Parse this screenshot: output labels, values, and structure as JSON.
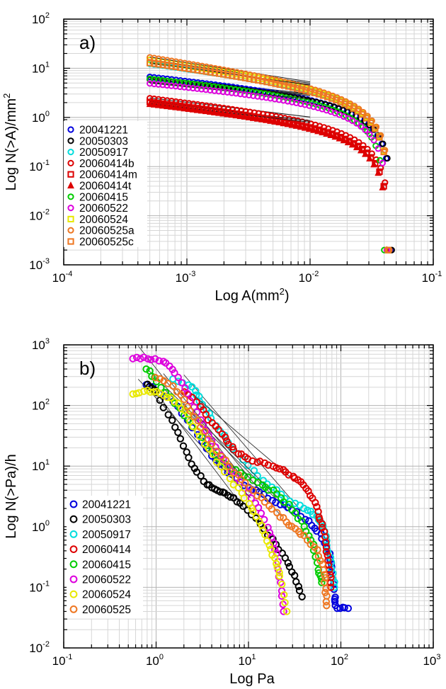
{
  "chart_data": [
    {
      "type": "scatter",
      "panel_label": "a)",
      "xlabel": "Log A(mm",
      "xlabel_sup": "2",
      "xlabel_end": ")",
      "ylabel": "Log N(>A)/mm",
      "ylabel_sup": "2",
      "x_scale": "log",
      "y_scale": "log",
      "xlim": [
        0.0001,
        0.1
      ],
      "ylim": [
        0.001,
        100
      ],
      "x_ticks": [
        {
          "base": "10",
          "exp": "-4"
        },
        {
          "base": "10",
          "exp": "-3"
        },
        {
          "base": "10",
          "exp": "-2"
        },
        {
          "base": "10",
          "exp": "-1"
        }
      ],
      "y_ticks": [
        {
          "base": "10",
          "exp": "-3"
        },
        {
          "base": "10",
          "exp": "-2"
        },
        {
          "base": "10",
          "exp": "-1"
        },
        {
          "base": "10",
          "exp": "0"
        },
        {
          "base": "10",
          "exp": "1"
        },
        {
          "base": "10",
          "exp": "2"
        }
      ],
      "grid": true,
      "legend_position": "left",
      "series": [
        {
          "name": "20041221",
          "color": "#0000dd",
          "marker": "circle",
          "n0": 6.8,
          "slope": -0.27,
          "xmax": 0.045
        },
        {
          "name": "20050303",
          "color": "#000000",
          "marker": "circle",
          "n0": 6.0,
          "slope": -0.24,
          "xmax": 0.046
        },
        {
          "name": "20050917",
          "color": "#00dddd",
          "marker": "circle",
          "n0": 12.5,
          "slope": -0.33,
          "xmax": 0.043
        },
        {
          "name": "20060414b",
          "color": "#dd0000",
          "marker": "circle",
          "n0": 2.5,
          "slope": -0.3,
          "xmax": 0.044
        },
        {
          "name": "20060414m",
          "color": "#dd0000",
          "marker": "square",
          "n0": 2.1,
          "slope": -0.3,
          "xmax": 0.043
        },
        {
          "name": "20060414t",
          "color": "#dd0000",
          "marker": "triangle",
          "n0": 1.9,
          "slope": -0.29,
          "xmax": 0.042
        },
        {
          "name": "20060415",
          "color": "#00cc00",
          "marker": "circle",
          "n0": 6.2,
          "slope": -0.27,
          "xmax": 0.04
        },
        {
          "name": "20060522",
          "color": "#dd00dd",
          "marker": "circle",
          "n0": 5.0,
          "slope": -0.25,
          "xmax": 0.042
        },
        {
          "name": "20060524",
          "color": "#e8e800",
          "marker": "square",
          "n0": 15.0,
          "slope": -0.37,
          "xmax": 0.043
        },
        {
          "name": "20060525a",
          "color": "#ee7722",
          "marker": "circle",
          "n0": 17.0,
          "slope": -0.39,
          "xmax": 0.044
        },
        {
          "name": "20060525c",
          "color": "#ee7722",
          "marker": "square",
          "n0": 13.0,
          "slope": -0.35,
          "xmax": 0.043
        }
      ]
    },
    {
      "type": "scatter",
      "panel_label": "b)",
      "xlabel": "Log Pa",
      "ylabel": "Log N(>Pa)/h",
      "x_scale": "log",
      "y_scale": "log",
      "xlim": [
        0.1,
        1000
      ],
      "ylim": [
        0.01,
        1000
      ],
      "x_ticks": [
        {
          "base": "10",
          "exp": "-1"
        },
        {
          "base": "10",
          "exp": "0"
        },
        {
          "base": "10",
          "exp": "1"
        },
        {
          "base": "10",
          "exp": "2"
        },
        {
          "base": "10",
          "exp": "3"
        }
      ],
      "y_ticks": [
        {
          "base": "10",
          "exp": "-2"
        },
        {
          "base": "10",
          "exp": "-1"
        },
        {
          "base": "10",
          "exp": "0"
        },
        {
          "base": "10",
          "exp": "1"
        },
        {
          "base": "10",
          "exp": "2"
        },
        {
          "base": "10",
          "exp": "3"
        }
      ],
      "grid": true,
      "legend_position": "bottom-left",
      "series": [
        {
          "name": "20041221",
          "color": "#0000dd",
          "points": [
            [
              0.8,
              230
            ],
            [
              1.5,
              120
            ],
            [
              2.5,
              45
            ],
            [
              4,
              15
            ],
            [
              6,
              8
            ],
            [
              9,
              5
            ],
            [
              13,
              3.6
            ],
            [
              20,
              2.6
            ],
            [
              30,
              1.9
            ],
            [
              45,
              1.2
            ],
            [
              60,
              0.75
            ],
            [
              75,
              0.35
            ],
            [
              80,
              0.18
            ],
            [
              85,
              0.07
            ],
            [
              90,
              0.045
            ],
            [
              120,
              0.045
            ]
          ]
        },
        {
          "name": "20050303",
          "color": "#000000",
          "points": [
            [
              0.8,
              220
            ],
            [
              1,
              160
            ],
            [
              1.5,
              55
            ],
            [
              2,
              22
            ],
            [
              2.6,
              9
            ],
            [
              3.5,
              5
            ],
            [
              4.5,
              4
            ],
            [
              6,
              3.3
            ],
            [
              8,
              2.5
            ],
            [
              12,
              1.4
            ],
            [
              18,
              0.6
            ],
            [
              25,
              0.3
            ],
            [
              32,
              0.15
            ],
            [
              38,
              0.07
            ]
          ]
        },
        {
          "name": "20050917",
          "color": "#00dddd",
          "points": [
            [
              1.5,
              270
            ],
            [
              2.5,
              200
            ],
            [
              3,
              120
            ],
            [
              4,
              60
            ],
            [
              6,
              25
            ],
            [
              10,
              10
            ],
            [
              16,
              5
            ],
            [
              25,
              3
            ],
            [
              40,
              2
            ],
            [
              55,
              1.5
            ],
            [
              65,
              1
            ],
            [
              72,
              0.5
            ],
            [
              80,
              0.2
            ],
            [
              85,
              0.1
            ]
          ]
        },
        {
          "name": "20060414",
          "color": "#dd0000",
          "points": [
            [
              2,
              170
            ],
            [
              3,
              100
            ],
            [
              4,
              50
            ],
            [
              5.5,
              30
            ],
            [
              7,
              18
            ],
            [
              10,
              13
            ],
            [
              15,
              11
            ],
            [
              22,
              9
            ],
            [
              30,
              7
            ],
            [
              40,
              5
            ],
            [
              50,
              3
            ],
            [
              58,
              1.5
            ],
            [
              65,
              0.8
            ],
            [
              70,
              0.4
            ],
            [
              75,
              0.2
            ],
            [
              78,
              0.1
            ]
          ]
        },
        {
          "name": "20060415",
          "color": "#00cc00",
          "points": [
            [
              0.8,
              400
            ],
            [
              1,
              250
            ],
            [
              1.6,
              110
            ],
            [
              2.5,
              45
            ],
            [
              4,
              18
            ],
            [
              6,
              10
            ],
            [
              9,
              7
            ],
            [
              14,
              5
            ],
            [
              20,
              3.5
            ],
            [
              30,
              2
            ],
            [
              40,
              1
            ],
            [
              50,
              0.5
            ],
            [
              58,
              0.2
            ],
            [
              62,
              0.12
            ]
          ]
        },
        {
          "name": "20060522",
          "color": "#dd00dd",
          "points": [
            [
              0.55,
              600
            ],
            [
              0.8,
              600
            ],
            [
              1.2,
              550
            ],
            [
              1.6,
              350
            ],
            [
              2.2,
              160
            ],
            [
              3,
              60
            ],
            [
              4,
              25
            ],
            [
              6,
              10
            ],
            [
              9,
              4.5
            ],
            [
              13,
              2
            ],
            [
              17,
              0.8
            ],
            [
              20,
              0.35
            ],
            [
              22,
              0.12
            ],
            [
              24,
              0.04
            ]
          ]
        },
        {
          "name": "20060524",
          "color": "#e8e800",
          "points": [
            [
              0.55,
              160
            ],
            [
              0.8,
              170
            ],
            [
              1.1,
              160
            ],
            [
              1.6,
              120
            ],
            [
              2.2,
              70
            ],
            [
              3,
              30
            ],
            [
              4.5,
              12
            ],
            [
              7,
              5
            ],
            [
              10,
              2.5
            ],
            [
              13,
              1.2
            ],
            [
              16,
              0.6
            ],
            [
              19,
              0.3
            ],
            [
              22,
              0.15
            ],
            [
              26,
              0.04
            ]
          ]
        },
        {
          "name": "20060525",
          "color": "#ee7722",
          "points": [
            [
              1,
              300
            ],
            [
              1.5,
              210
            ],
            [
              2.2,
              100
            ],
            [
              3,
              45
            ],
            [
              4.5,
              18
            ],
            [
              7,
              8
            ],
            [
              10,
              4.5
            ],
            [
              15,
              2.5
            ],
            [
              22,
              1.5
            ],
            [
              30,
              1
            ],
            [
              40,
              0.7
            ],
            [
              55,
              0.4
            ],
            [
              65,
              0.2
            ],
            [
              68,
              0.1
            ],
            [
              70,
              0.05
            ]
          ]
        }
      ]
    }
  ]
}
